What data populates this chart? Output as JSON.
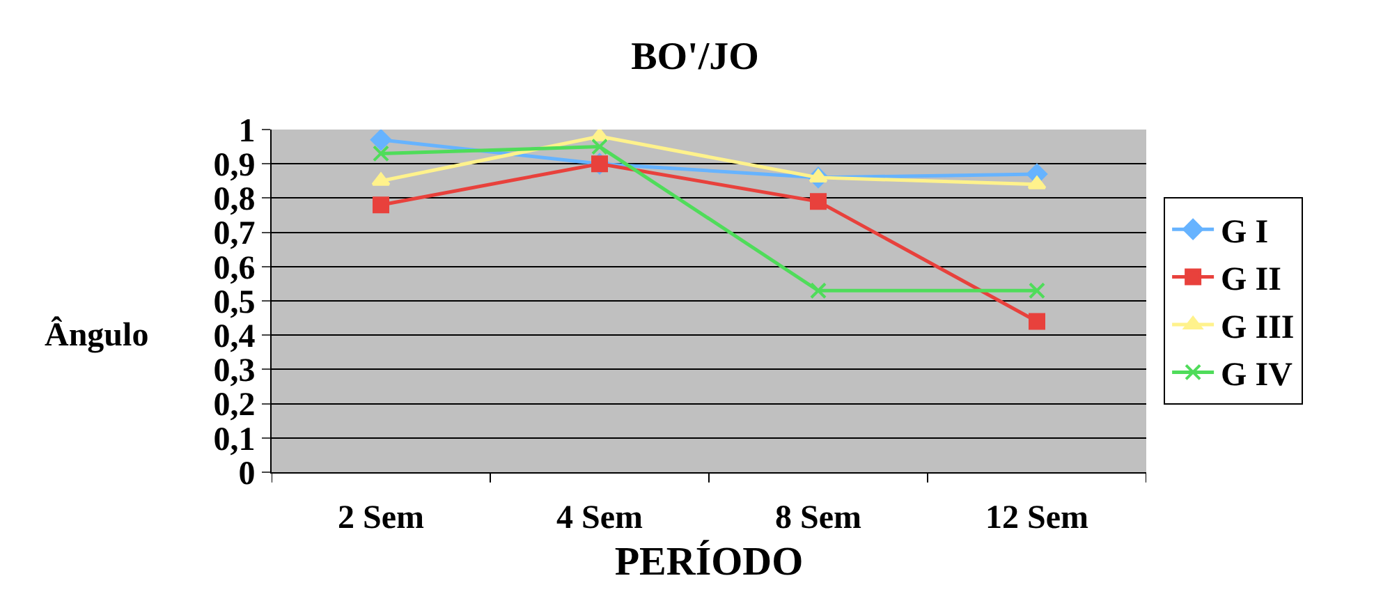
{
  "chart_data": {
    "type": "line",
    "title": "BO'/JO",
    "xlabel": "PERÍODO",
    "ylabel": "Ângulo",
    "categories": [
      "2 Sem",
      "4 Sem",
      "8 Sem",
      "12 Sem"
    ],
    "series": [
      {
        "name": "G I",
        "color": "#66b3ff",
        "marker": "diamond",
        "values": [
          0.97,
          0.9,
          0.86,
          0.87
        ]
      },
      {
        "name": "G II",
        "color": "#e8413c",
        "marker": "square",
        "values": [
          0.78,
          0.9,
          0.79,
          0.44
        ]
      },
      {
        "name": "G III",
        "color": "#fff28c",
        "marker": "triangle",
        "values": [
          0.85,
          0.98,
          0.86,
          0.84
        ]
      },
      {
        "name": "G IV",
        "color": "#4fdc5a",
        "marker": "cross",
        "values": [
          0.93,
          0.95,
          0.53,
          0.53
        ]
      }
    ],
    "ylim": [
      0,
      1
    ],
    "yticks": [
      0,
      {
        "value": 0.1,
        "label": "0,1"
      },
      {
        "value": 0.2,
        "label": "0,2"
      },
      {
        "value": 0.3,
        "label": "0,3"
      },
      {
        "value": 0.4,
        "label": "0,4"
      },
      {
        "value": 0.5,
        "label": "0,5"
      },
      {
        "value": 0.6,
        "label": "0,6"
      },
      {
        "value": 0.7,
        "label": "0,7"
      },
      {
        "value": 0.8,
        "label": "0,8"
      },
      {
        "value": 0.9,
        "label": "0,9"
      },
      1
    ],
    "grid": "y",
    "legend": "right"
  }
}
